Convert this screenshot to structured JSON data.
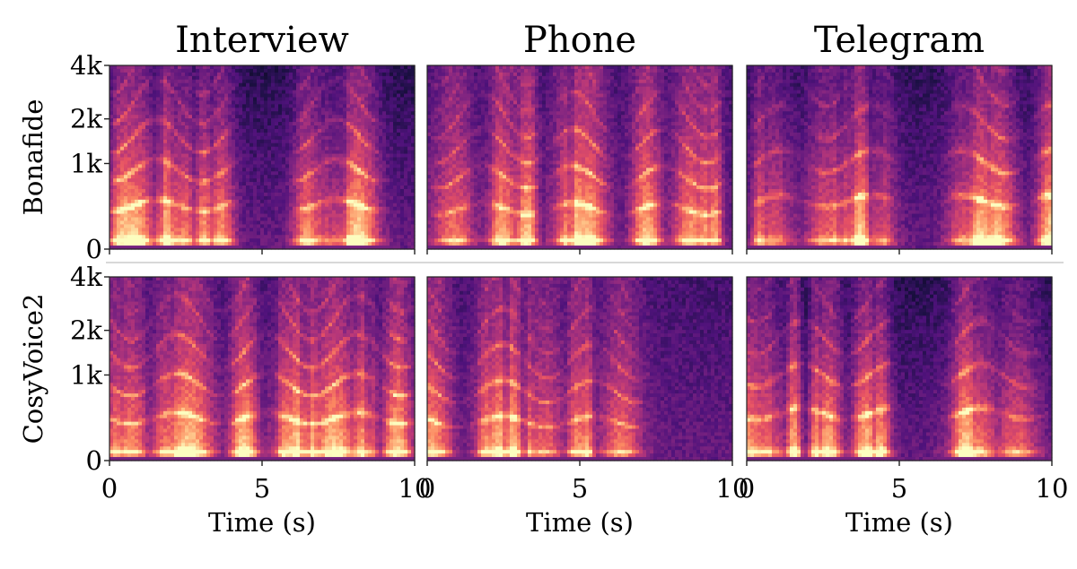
{
  "chart_data": {
    "type": "heatmap",
    "colormap": "magma",
    "columns": [
      "Interview",
      "Phone",
      "Telegram"
    ],
    "rows": [
      "Bonafide",
      "CosyVoice2"
    ],
    "xlabel": "Time (s)",
    "x_ticks": [
      "0",
      "5",
      "10"
    ],
    "xlim": [
      0,
      10
    ],
    "y_ticks": [
      "0",
      "1k",
      "2k",
      "4k"
    ],
    "ylim": [
      0,
      4000
    ],
    "y_scale": "mel",
    "panels": [
      {
        "row": "Bonafide",
        "column": "Interview",
        "seed": 11,
        "fmax_brightness": 0.55
      },
      {
        "row": "Bonafide",
        "column": "Phone",
        "seed": 23,
        "fmax_brightness": 0.75
      },
      {
        "row": "Bonafide",
        "column": "Telegram",
        "seed": 37,
        "fmax_brightness": 0.6
      },
      {
        "row": "CosyVoice2",
        "column": "Interview",
        "seed": 41,
        "fmax_brightness": 0.7
      },
      {
        "row": "CosyVoice2",
        "column": "Phone",
        "seed": 53,
        "fmax_brightness": 0.75
      },
      {
        "row": "CosyVoice2",
        "column": "Telegram",
        "seed": 67,
        "fmax_brightness": 0.55
      }
    ]
  }
}
